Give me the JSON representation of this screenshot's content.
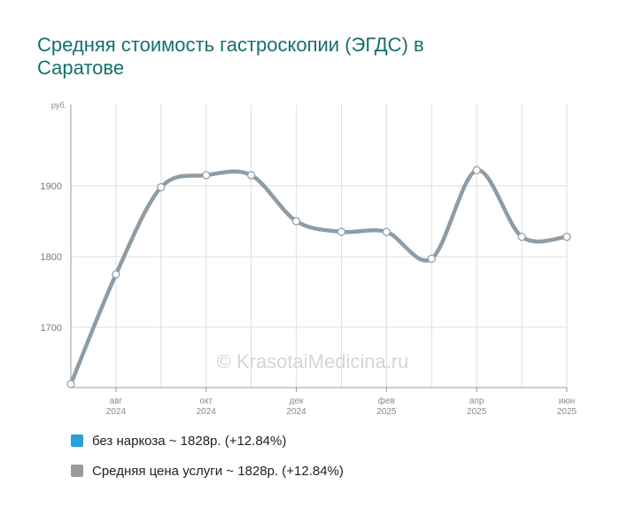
{
  "title": "Средняя стоимость гастроскопии (ЭГДС) в Саратове",
  "watermark": "© KrasotaiMedicina.ru",
  "colors": {
    "title": "#14706b",
    "series_line": "#8e9ca6",
    "grid": "#dedede",
    "legend_blue": "#2a9fd8",
    "legend_gray": "#9a9a9a"
  },
  "legend": [
    {
      "text": "без наркоза ~ 1828р. (+12.84%)",
      "color": "#2a9fd8"
    },
    {
      "text": "Средняя цена услуги ~ 1828р. (+12.84%)",
      "color": "#9a9a9a"
    }
  ],
  "chart_data": {
    "type": "line",
    "ylabel": "руб.",
    "yticks": [
      1700,
      1800,
      1900
    ],
    "ylim": [
      1615,
      2015
    ],
    "x_labels": [
      {
        "month": "авг",
        "year": "2024",
        "index": 1
      },
      {
        "month": "окт",
        "year": "2024",
        "index": 3
      },
      {
        "month": "дек",
        "year": "2024",
        "index": 5
      },
      {
        "month": "фев",
        "year": "2025",
        "index": 7
      },
      {
        "month": "апр",
        "year": "2025",
        "index": 9
      },
      {
        "month": "июн",
        "year": "2025",
        "index": 11
      }
    ],
    "x": [
      "июл 2024",
      "авг 2024",
      "сен 2024",
      "окт 2024",
      "ноя 2024",
      "дек 2024",
      "янв 2025",
      "фев 2025",
      "мар 2025",
      "апр 2025",
      "май 2025",
      "июн 2025"
    ],
    "series": [
      {
        "values": [
          1620,
          1775,
          1898,
          1915,
          1915,
          1850,
          1835,
          1835,
          1797,
          1922,
          1828,
          1828
        ]
      }
    ],
    "grid": true
  }
}
